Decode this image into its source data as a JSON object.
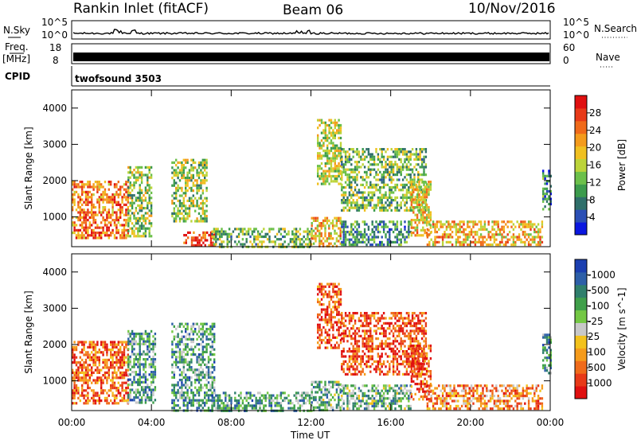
{
  "header": {
    "station": "Rankin Inlet (fitACF)",
    "beam": "Beam 06",
    "date": "10/Nov/2016"
  },
  "strip_labels": {
    "nsky": "N.Sky",
    "nsky_tick_top": "10^5",
    "nsky_tick_bottom": "10^0",
    "nsearch": "N.Search",
    "nsearch_tick_top": "10^5",
    "nsearch_tick_bottom": "10^0",
    "freq": "Freq.",
    "freq_unit": "[MHz]",
    "freq_tick_top": "18",
    "freq_tick_bottom": "8",
    "nave": "Nave",
    "nave_tick_top": "60",
    "nave_tick_bottom": "0",
    "cpid": "CPID",
    "cpid_value": "twofsound 3503"
  },
  "chart_data": [
    {
      "type": "heatmap",
      "panel": "power",
      "xlabel": "",
      "ylabel": "Slant Range [km]",
      "x_ticks": [
        "00:00",
        "04:00",
        "08:00",
        "12:00",
        "16:00",
        "20:00",
        "00:00"
      ],
      "xlim_hours": [
        0,
        24
      ],
      "ylim": [
        180,
        4500
      ],
      "y_ticks": [
        1000,
        2000,
        3000,
        4000
      ],
      "colorbar_label": "Power [dB]",
      "colorbar_ticks": [
        "4",
        "8",
        "12",
        "16",
        "20",
        "24",
        "28"
      ],
      "colorbar_colors": [
        "#0a17e0",
        "#2b4fb5",
        "#2f6f6a",
        "#3c9b4c",
        "#6cc04a",
        "#bcd43a",
        "#f0c020",
        "#f49b1c",
        "#f06a1a",
        "#e83a18",
        "#e01010"
      ],
      "regions": [
        {
          "t": [
            0.0,
            2.8
          ],
          "r": [
            400,
            2000
          ],
          "level": 0.75
        },
        {
          "t": [
            2.8,
            4.0
          ],
          "r": [
            500,
            2400
          ],
          "level": 0.45
        },
        {
          "t": [
            5.0,
            6.8
          ],
          "r": [
            900,
            2600
          ],
          "level": 0.45
        },
        {
          "t": [
            5.6,
            7.2
          ],
          "r": [
            200,
            600
          ],
          "level": 0.9
        },
        {
          "t": [
            7.0,
            12.0
          ],
          "r": [
            200,
            700
          ],
          "level": 0.4
        },
        {
          "t": [
            12.3,
            13.5
          ],
          "r": [
            1900,
            3700
          ],
          "level": 0.5
        },
        {
          "t": [
            12.0,
            13.5
          ],
          "r": [
            200,
            1000
          ],
          "level": 0.6
        },
        {
          "t": [
            13.5,
            17.8
          ],
          "r": [
            1200,
            2900
          ],
          "level": 0.4
        },
        {
          "t": [
            13.5,
            17.0
          ],
          "r": [
            200,
            900
          ],
          "level": 0.3
        },
        {
          "t": [
            17.0,
            18.0
          ],
          "r": [
            500,
            2000
          ],
          "level": 0.6
        },
        {
          "t": [
            17.8,
            23.6
          ],
          "r": [
            250,
            900
          ],
          "level": 0.65
        },
        {
          "t": [
            23.6,
            24.0
          ],
          "r": [
            1200,
            2300
          ],
          "level": 0.25
        }
      ]
    },
    {
      "type": "heatmap",
      "panel": "velocity",
      "xlabel": "Time UT",
      "ylabel": "Slant Range [km]",
      "x_ticks": [
        "00:00",
        "04:00",
        "08:00",
        "12:00",
        "16:00",
        "20:00",
        "00:00"
      ],
      "xlim_hours": [
        0,
        24
      ],
      "ylim": [
        180,
        4500
      ],
      "y_ticks": [
        1000,
        2000,
        3000,
        4000
      ],
      "colorbar_label": "Velocity [m s^-1]",
      "colorbar_ticks": [
        "1000",
        "500",
        "100",
        "25",
        "-25",
        "-100",
        "-500",
        "-1000"
      ],
      "colorbar_colors": [
        "#1b3fb0",
        "#2d5fa8",
        "#2f7f6c",
        "#3f9f4a",
        "#74c844",
        "#c8c8c8",
        "#f3c21c",
        "#f59b1b",
        "#f06b1a",
        "#e83a18",
        "#e01010"
      ],
      "regions": [
        {
          "t": [
            0.0,
            2.8
          ],
          "r": [
            400,
            2100
          ],
          "level": 0.8
        },
        {
          "t": [
            2.8,
            4.2
          ],
          "r": [
            400,
            2400
          ],
          "level": 0.3
        },
        {
          "t": [
            5.0,
            7.2
          ],
          "r": [
            200,
            2600
          ],
          "level": 0.3
        },
        {
          "t": [
            7.0,
            12.0
          ],
          "r": [
            200,
            700
          ],
          "level": 0.3
        },
        {
          "t": [
            12.3,
            13.5
          ],
          "r": [
            1900,
            3700
          ],
          "level": 0.85
        },
        {
          "t": [
            12.0,
            13.5
          ],
          "r": [
            200,
            1000
          ],
          "level": 0.35
        },
        {
          "t": [
            13.5,
            17.8
          ],
          "r": [
            1200,
            2900
          ],
          "level": 0.85
        },
        {
          "t": [
            13.5,
            17.0
          ],
          "r": [
            200,
            900
          ],
          "level": 0.35
        },
        {
          "t": [
            17.0,
            18.0
          ],
          "r": [
            500,
            2000
          ],
          "level": 0.85
        },
        {
          "t": [
            17.8,
            23.6
          ],
          "r": [
            250,
            900
          ],
          "level": 0.7
        },
        {
          "t": [
            23.6,
            24.0
          ],
          "r": [
            1200,
            2300
          ],
          "level": 0.3
        }
      ]
    }
  ]
}
